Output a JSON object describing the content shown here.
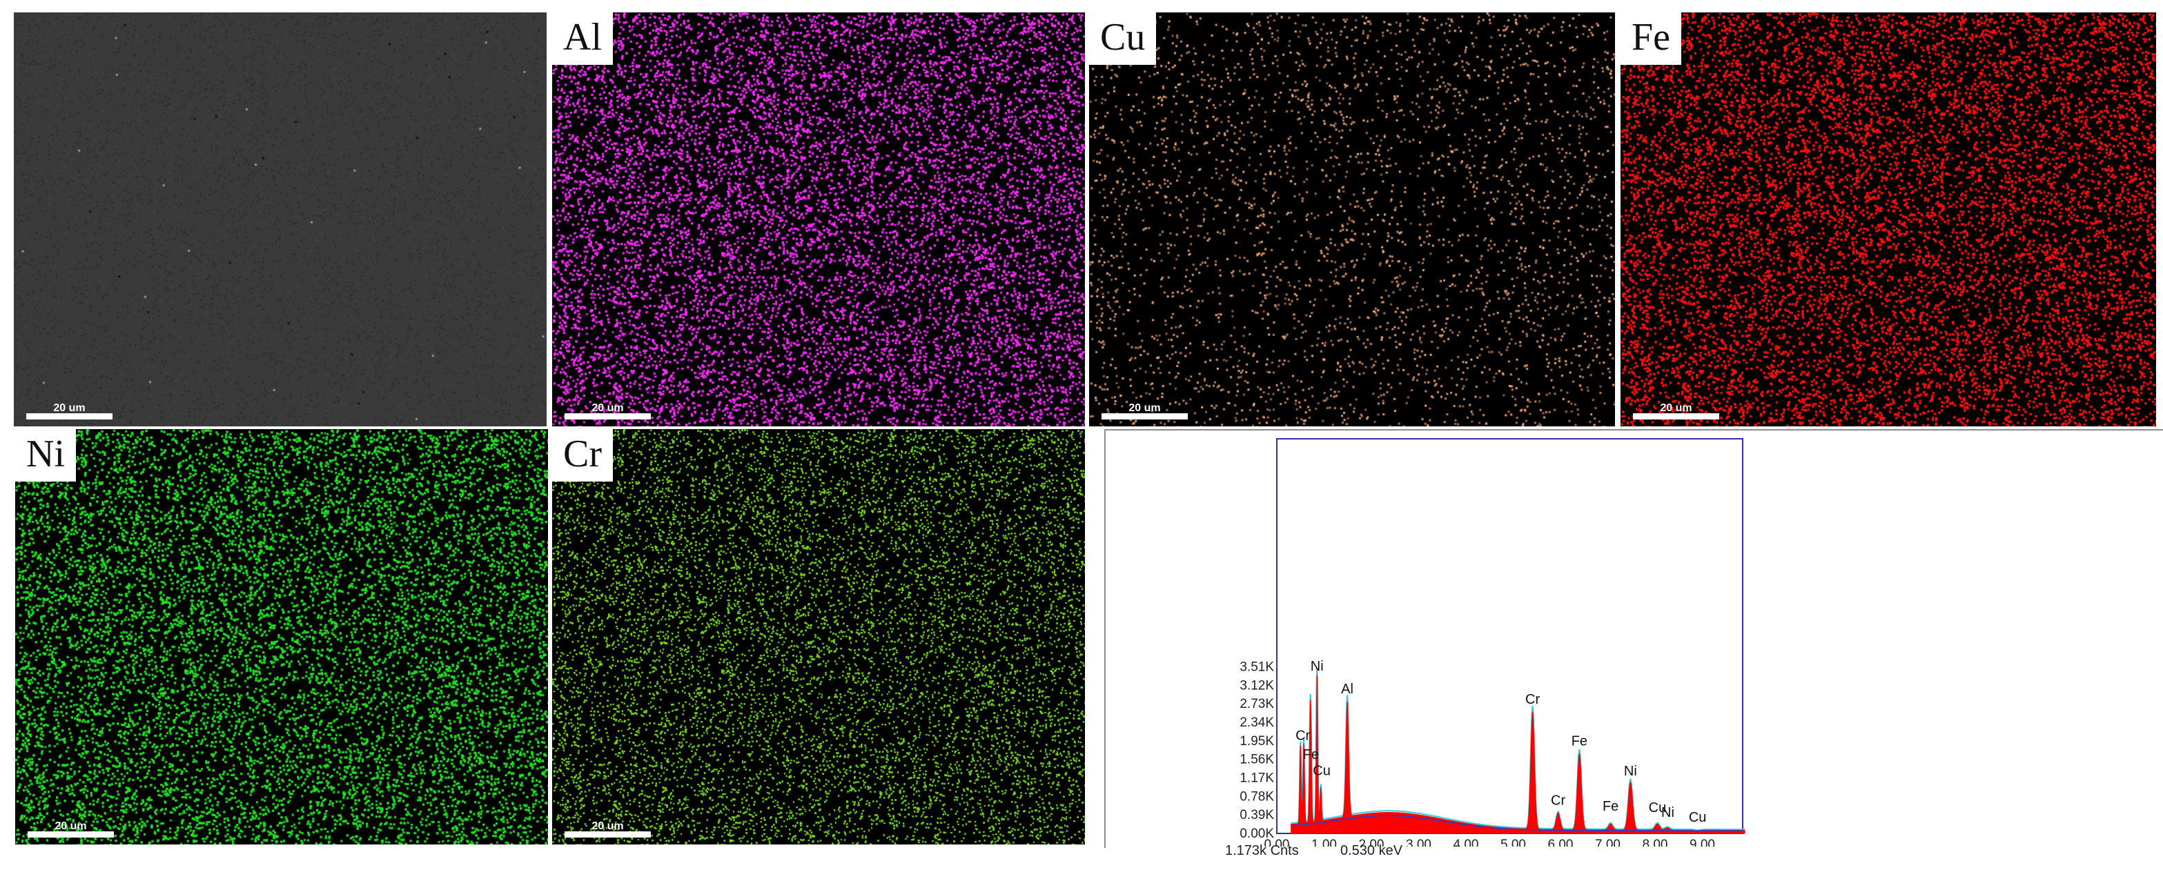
{
  "panels": [
    {
      "id": "sem",
      "label": "",
      "scale": "20 um",
      "color": "#3a3a3a"
    },
    {
      "id": "al",
      "label": "Al",
      "scale": "20 um",
      "color": "#ff2cff"
    },
    {
      "id": "cu",
      "label": "Cu",
      "scale": "20 um",
      "color": "#ffb07a"
    },
    {
      "id": "fe",
      "label": "Fe",
      "scale": "20 um",
      "color": "#ff1010"
    },
    {
      "id": "ni",
      "label": "Ni",
      "scale": "20 um",
      "color": "#22e522"
    },
    {
      "id": "cr",
      "label": "Cr",
      "scale": "20 um",
      "color": "#7be21a"
    }
  ],
  "spectrum": {
    "readout_counts": "1.173k Cnts",
    "readout_energy": "0.530 keV",
    "chart_data": {
      "type": "area",
      "xlim": [
        0,
        10
      ],
      "ylim": [
        0,
        3.6
      ],
      "x_ticks": [
        "0.00",
        "1.00",
        "2.00",
        "3.00",
        "4.00",
        "5.00",
        "6.00",
        "7.00",
        "8.00",
        "9.00"
      ],
      "x_tick_values": [
        0,
        1,
        2,
        3,
        4,
        5,
        6,
        7,
        8,
        9
      ],
      "y_ticks": [
        "0.00K",
        "0.39K",
        "0.78K",
        "1.17K",
        "1.56K",
        "1.95K",
        "2.34K",
        "2.73K",
        "3.12K",
        "3.51K"
      ],
      "y_tick_values": [
        0,
        0.39,
        0.78,
        1.17,
        1.56,
        1.95,
        2.34,
        2.73,
        3.12,
        3.51
      ],
      "peaks": [
        {
          "label": "Cr",
          "energy": 0.5,
          "counts": 1.85
        },
        {
          "label": "Cr",
          "energy": 0.57,
          "counts": 1.9
        },
        {
          "label": "Fe",
          "energy": 0.7,
          "counts": 1.62
        },
        {
          "label": "Fe",
          "energy": 0.72,
          "counts": 2.0
        },
        {
          "label": "Ni",
          "energy": 0.85,
          "counts": 3.35
        },
        {
          "label": "Cu",
          "energy": 0.93,
          "counts": 0.98
        },
        {
          "label": "Al",
          "energy": 1.49,
          "counts": 2.78
        },
        {
          "label": "Cr",
          "energy": 5.41,
          "counts": 2.56
        },
        {
          "label": "Cr",
          "energy": 5.95,
          "counts": 0.43
        },
        {
          "label": "Fe",
          "energy": 6.4,
          "counts": 1.68
        },
        {
          "label": "Fe",
          "energy": 7.06,
          "counts": 0.2
        },
        {
          "label": "Ni",
          "energy": 7.48,
          "counts": 1.08
        },
        {
          "label": "Cu",
          "energy": 8.05,
          "counts": 0.2
        },
        {
          "label": "Ni",
          "energy": 8.26,
          "counts": 0.12
        },
        {
          "label": "Cu",
          "energy": 8.9,
          "counts": 0.05
        }
      ],
      "annotations": [
        {
          "text": "Ni",
          "energy": 0.85,
          "counts": 3.43
        },
        {
          "text": "Cr",
          "energy": 0.55,
          "counts": 1.97
        },
        {
          "text": "Fe",
          "energy": 0.72,
          "counts": 1.57
        },
        {
          "text": "Cu",
          "energy": 0.95,
          "counts": 1.23
        },
        {
          "text": "Al",
          "energy": 1.49,
          "counts": 2.95
        },
        {
          "text": "Cr",
          "energy": 5.41,
          "counts": 2.73
        },
        {
          "text": "Fe",
          "energy": 6.4,
          "counts": 1.85
        },
        {
          "text": "Cr",
          "energy": 5.95,
          "counts": 0.6
        },
        {
          "text": "Fe",
          "energy": 7.06,
          "counts": 0.48
        },
        {
          "text": "Ni",
          "energy": 7.48,
          "counts": 1.22
        },
        {
          "text": "Cu",
          "energy": 8.05,
          "counts": 0.45
        },
        {
          "text": "Ni",
          "energy": 8.27,
          "counts": 0.35
        },
        {
          "text": "Cu",
          "energy": 8.9,
          "counts": 0.25
        }
      ],
      "colors": {
        "fill": "#ff0000",
        "outline": "#2fd0e0",
        "frame": "#3030a8",
        "background_line": "#1f3fd0"
      }
    }
  }
}
